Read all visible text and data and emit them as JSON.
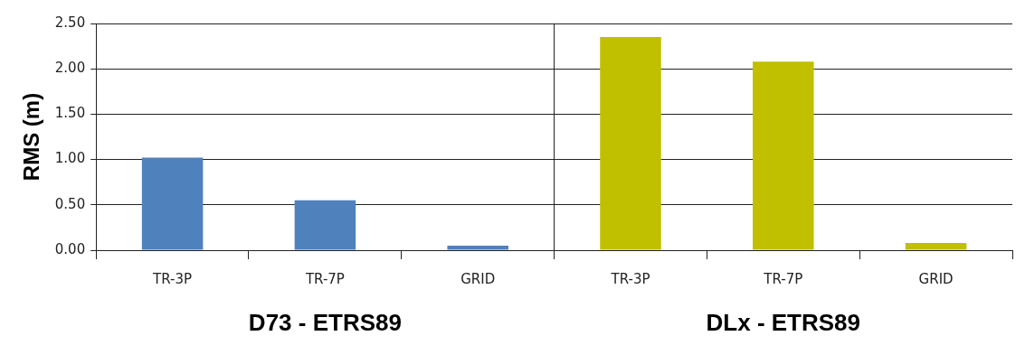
{
  "chart_data": {
    "type": "bar",
    "ylabel": "RMS (m)",
    "categories": [
      "TR-3P",
      "TR-7P",
      "GRID",
      "TR-3P",
      "TR-7P",
      "GRID"
    ],
    "values": [
      1.02,
      0.55,
      0.05,
      2.35,
      2.08,
      0.08
    ],
    "colors": [
      "#4f81bd",
      "#4f81bd",
      "#4f81bd",
      "#c0c000",
      "#c0c000",
      "#c0c000"
    ],
    "annotations": [
      "D73 - ETRS89",
      "DLx - ETRS89"
    ],
    "ylim": [
      0,
      2.5
    ],
    "yticks": [
      {
        "value": 0,
        "label": "0.00"
      },
      {
        "value": 0.5,
        "label": "0.50"
      },
      {
        "value": 1,
        "label": "1.00"
      },
      {
        "value": 1.5,
        "label": "1.50"
      },
      {
        "value": 2,
        "label": "2.00"
      },
      {
        "value": 2.5,
        "label": "2.50"
      }
    ],
    "grid": "y",
    "legend": false
  }
}
